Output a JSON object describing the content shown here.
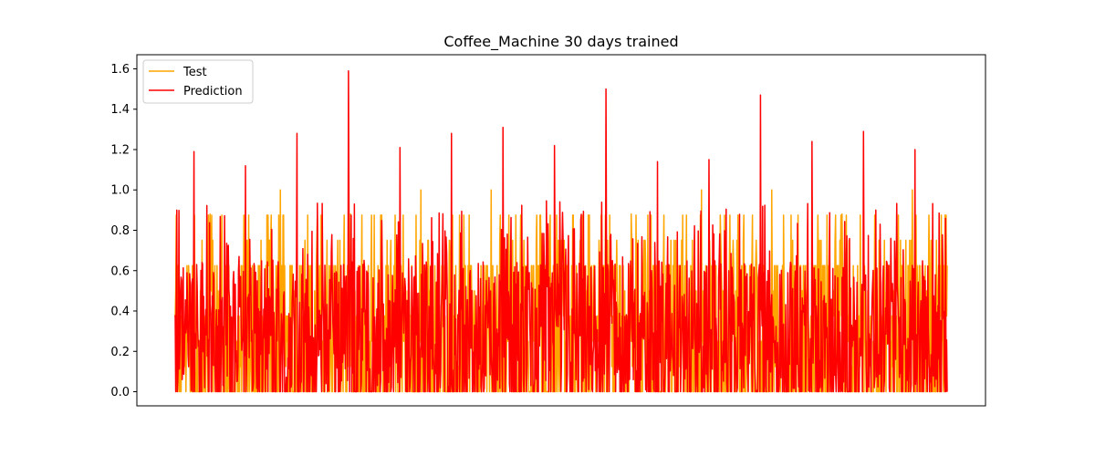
{
  "chart_data": {
    "type": "line",
    "title": "Coffee_Machine 30 days trained",
    "xlabel": "",
    "ylabel": "",
    "ylim": [
      -0.07,
      1.67
    ],
    "yticks": [
      0.0,
      0.2,
      0.4,
      0.6,
      0.8,
      1.0,
      1.2,
      1.4,
      1.6
    ],
    "ytick_labels": [
      "0.0",
      "0.2",
      "0.4",
      "0.6",
      "0.8",
      "1.0",
      "1.2",
      "1.4",
      "1.6"
    ],
    "x_ticks_visible": false,
    "grid": false,
    "legend": {
      "placement": "top-left",
      "entries": [
        "Test",
        "Prediction"
      ]
    },
    "n_points": 1440,
    "series": [
      {
        "name": "Test",
        "color": "#ffa500",
        "description": "binary-ish test signal, mostly 0 with frequent spikes up to ~1.0",
        "peak_values": [
          0.88,
          1.0,
          0.88,
          1.0,
          1.0,
          0.75,
          0.88,
          1.0,
          1.0,
          0.88,
          1.0
        ]
      },
      {
        "name": "Prediction",
        "color": "#ff0000",
        "description": "noisy prediction oscillating roughly between 0 and 0.8 with spikes",
        "peak_values": [
          1.19,
          1.12,
          1.28,
          1.59,
          1.21,
          1.28,
          1.31,
          1.22,
          1.5,
          1.14,
          1.15,
          1.47,
          1.24,
          1.29,
          1.2
        ]
      }
    ]
  }
}
